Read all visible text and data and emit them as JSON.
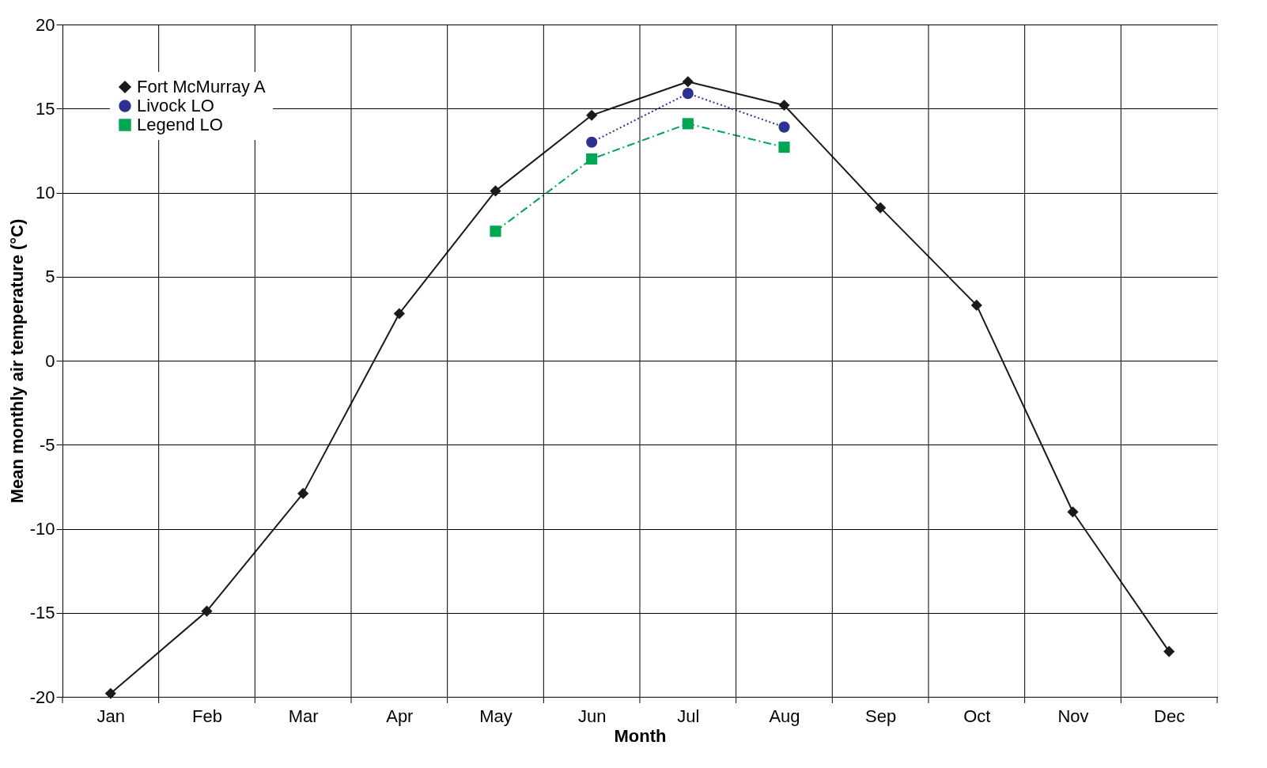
{
  "chart_data": {
    "type": "line",
    "xlabel": "Month",
    "ylabel": "Mean monthly air temperature (°C)",
    "categories": [
      "Jan",
      "Feb",
      "Mar",
      "Apr",
      "May",
      "Jun",
      "Jul",
      "Aug",
      "Sep",
      "Oct",
      "Nov",
      "Dec"
    ],
    "series": [
      {
        "name": "Fort McMurray A",
        "color": "#1a1a1a",
        "marker": "diamond",
        "line_style": "solid",
        "values": [
          -19.8,
          -14.9,
          -7.9,
          2.8,
          10.1,
          14.6,
          16.6,
          15.2,
          9.1,
          3.3,
          -9.0,
          -17.3
        ]
      },
      {
        "name": "Livock LO",
        "color": "#2e3192",
        "marker": "circle",
        "line_style": "dotted",
        "values": [
          null,
          null,
          null,
          null,
          null,
          13.0,
          15.9,
          13.9,
          null,
          null,
          null,
          null
        ]
      },
      {
        "name": "Legend LO",
        "color": "#00a651",
        "marker": "square",
        "line_style": "dashed",
        "values": [
          null,
          null,
          null,
          null,
          7.7,
          12.0,
          14.1,
          12.7,
          null,
          null,
          null,
          null
        ]
      }
    ],
    "ylim": [
      -20,
      20
    ],
    "yticks": [
      -20,
      -15,
      -10,
      -5,
      0,
      5,
      10,
      15,
      20
    ],
    "grid": true,
    "legend": "top left"
  }
}
